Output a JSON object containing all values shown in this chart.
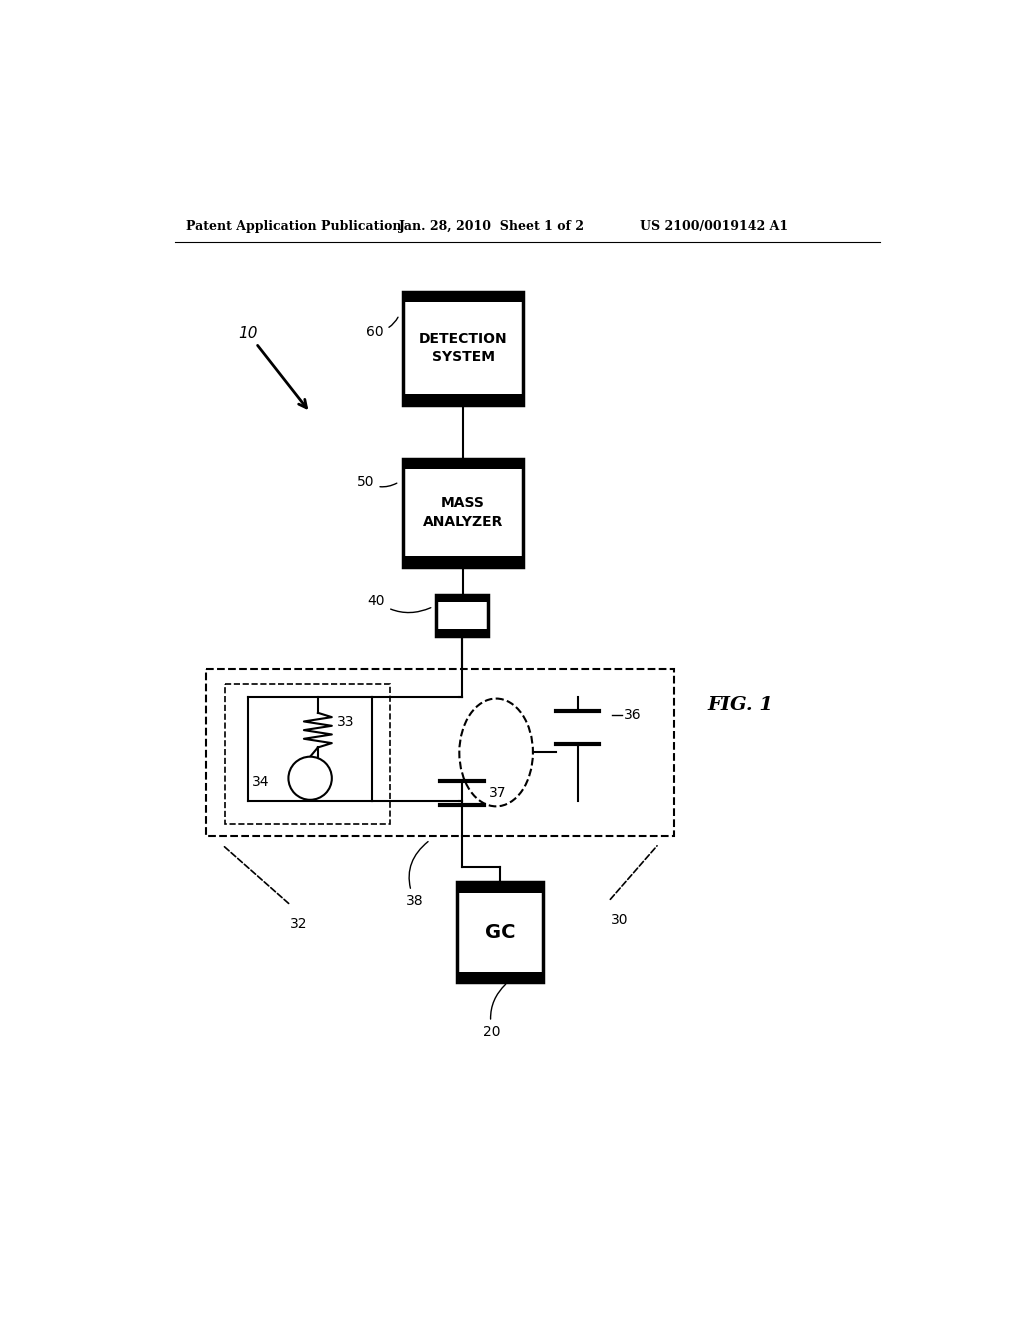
{
  "bg_color": "#ffffff",
  "header_left": "Patent Application Publication",
  "header_mid": "Jan. 28, 2010  Sheet 1 of 2",
  "header_right": "US 2100/0019142 A1",
  "fig_label": "FIG. 1",
  "label_10": "10",
  "label_20": "20",
  "label_30": "30",
  "label_32": "32",
  "label_33": "33",
  "label_34": "34",
  "label_36": "36",
  "label_37": "37",
  "label_38": "38",
  "label_40": "40",
  "label_50": "50",
  "label_60": "60",
  "det_text1": "DETECTION",
  "det_text2": "SYSTEM",
  "mass_text1": "MASS",
  "mass_text2": "ANALYZER",
  "gc_text": "GC"
}
